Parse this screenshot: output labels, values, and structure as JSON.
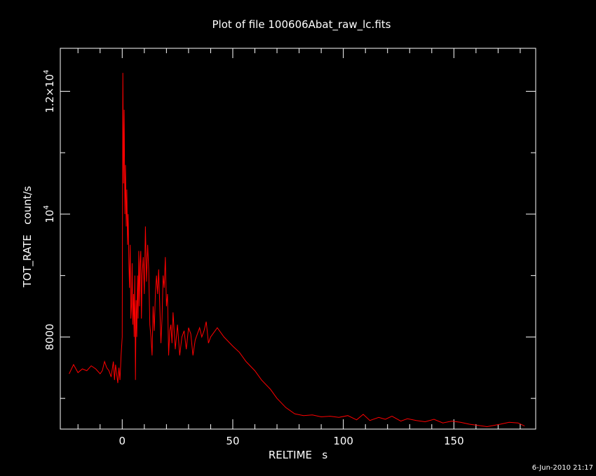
{
  "footer_timestamp": "6-Jun-2010 21:17",
  "chart_data": {
    "type": "line",
    "title": "Plot of file 100606Abat_raw_lc.fits",
    "xlabel": "RELTIME   s",
    "ylabel": "TOT_RATE   count/s",
    "xlim": [
      -28,
      187
    ],
    "ylim": [
      6500,
      12700
    ],
    "x_tick_labels": [
      {
        "value": 0,
        "text": "0"
      },
      {
        "value": 50,
        "text": "50"
      },
      {
        "value": 100,
        "text": "100"
      },
      {
        "value": 150,
        "text": "150"
      }
    ],
    "x_minor_ticks": [
      -20,
      -10,
      10,
      20,
      30,
      40,
      60,
      70,
      80,
      90,
      110,
      120,
      130,
      140,
      160,
      170,
      180
    ],
    "y_tick_labels": [
      {
        "value": 8000,
        "base": "8000",
        "sup": ""
      },
      {
        "value": 10000,
        "base": "10",
        "sup": "4"
      },
      {
        "value": 12000,
        "base": "1.2×10",
        "sup": "4"
      }
    ],
    "y_minor_ticks": [
      7000,
      9000,
      11000
    ],
    "series_color": "#ff0000",
    "axis_color": "#ffffff",
    "background_color": "#000000",
    "grid": false,
    "series": [
      {
        "x": [
          -24,
          -22,
          -20,
          -18,
          -16,
          -14,
          -12,
          -10,
          -9,
          -8,
          -7,
          -6,
          -5,
          -4,
          -3.5,
          -3,
          -2.5,
          -2,
          -1.5,
          -1,
          -0.5,
          0,
          0.3,
          0.6,
          0.9,
          1.2,
          1.5,
          1.8,
          2.1,
          2.4,
          2.7,
          3,
          3.3,
          3.6,
          3.9,
          4.2,
          4.5,
          4.8,
          5.1,
          5.4,
          5.7,
          6,
          6.3,
          6.6,
          6.9,
          7.2,
          7.5,
          7.8,
          8.1,
          8.4,
          8.7,
          9,
          9.5,
          10,
          10.5,
          11,
          11.5,
          12,
          12.5,
          13,
          13.5,
          14,
          14.5,
          15,
          15.5,
          16,
          16.5,
          17,
          17.5,
          18,
          18.5,
          19,
          19.5,
          20,
          20.5,
          21,
          21.5,
          22,
          22.5,
          23,
          24,
          25,
          26,
          27,
          28,
          29,
          30,
          31,
          32,
          33,
          34,
          35,
          36,
          37,
          38,
          39,
          40,
          43,
          46,
          50,
          53,
          56,
          60,
          63,
          67,
          70,
          74,
          78,
          82,
          86,
          90,
          94,
          98,
          102,
          106,
          109,
          112,
          116,
          119,
          122,
          126,
          129,
          133,
          137,
          141,
          145,
          149,
          153,
          157,
          161,
          165,
          168,
          171,
          175,
          179,
          182
        ],
        "y": [
          7400,
          7550,
          7420,
          7480,
          7450,
          7530,
          7480,
          7400,
          7450,
          7600,
          7500,
          7450,
          7350,
          7600,
          7300,
          7550,
          7400,
          7250,
          7500,
          7300,
          7700,
          8000,
          12300,
          10500,
          11700,
          10000,
          10800,
          9800,
          10400,
          9500,
          10000,
          9200,
          8800,
          9500,
          8300,
          8500,
          9200,
          8200,
          8700,
          8000,
          9000,
          7300,
          8600,
          8000,
          9000,
          8300,
          9400,
          8500,
          9200,
          9400,
          8300,
          9000,
          9300,
          8700,
          9800,
          8900,
          9500,
          9100,
          8200,
          8000,
          7700,
          8500,
          8100,
          8700,
          9000,
          8700,
          9100,
          8500,
          7900,
          8300,
          9000,
          8800,
          9300,
          8500,
          8700,
          7700,
          8100,
          8200,
          7900,
          8400,
          7800,
          8200,
          7700,
          8000,
          8100,
          7800,
          8150,
          8050,
          7700,
          7950,
          8050,
          8150,
          8000,
          8100,
          8250,
          7900,
          8000,
          8150,
          8000,
          7850,
          7750,
          7600,
          7450,
          7300,
          7150,
          7000,
          6850,
          6750,
          6720,
          6730,
          6700,
          6710,
          6690,
          6720,
          6650,
          6740,
          6640,
          6690,
          6660,
          6710,
          6630,
          6670,
          6640,
          6620,
          6660,
          6600,
          6630,
          6610,
          6580,
          6560,
          6540,
          6560,
          6580,
          6610,
          6600,
          6550
        ]
      }
    ]
  }
}
